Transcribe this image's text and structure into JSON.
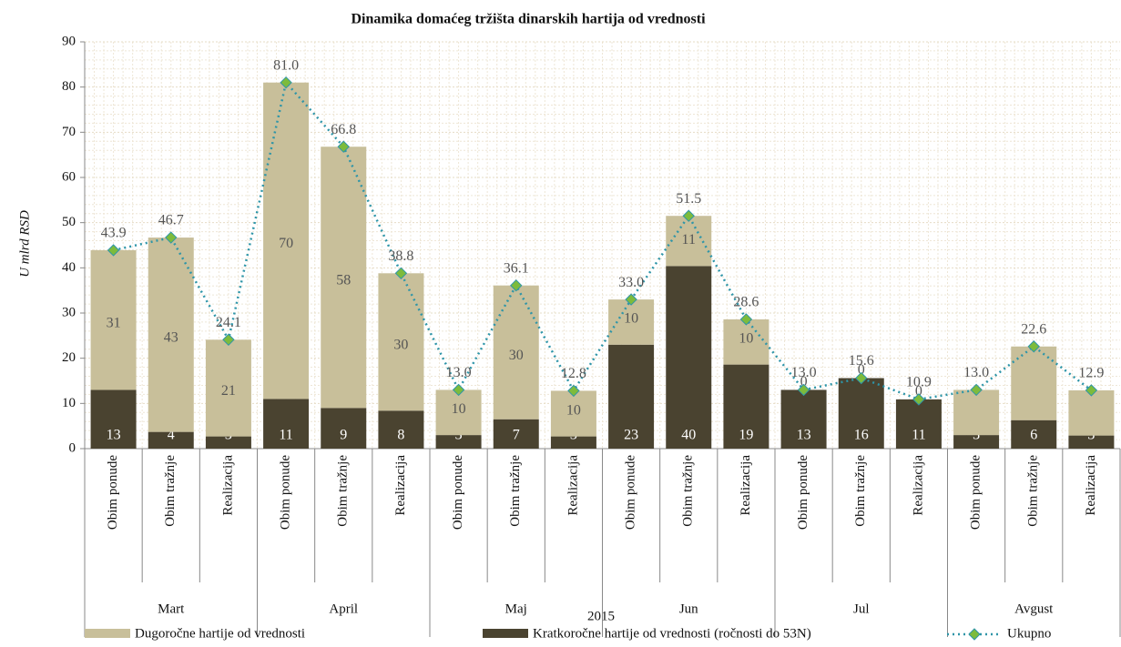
{
  "chart_data": {
    "type": "stacked-bar-line",
    "title": "Dinamika domaćeg tržišta dinarskih hartija od vrednosti",
    "y_label": "U mlrd RSD",
    "x_label": "2015",
    "groups": [
      "Mart",
      "April",
      "Maj",
      "Jun",
      "Jul",
      "Avgust"
    ],
    "categories": [
      "Obim ponude",
      "Obim tražnje",
      "Realizacija",
      "Obim ponude",
      "Obim tražnje",
      "Realizacija",
      "Obim ponude",
      "Obim tražnje",
      "Realizacija",
      "Obim ponude",
      "Obim tražnje",
      "Realizacija",
      "Obim ponude",
      "Obim tražnje",
      "Realizacija",
      "Obim ponude",
      "Obim tražnje",
      "Realizacija"
    ],
    "series": [
      {
        "name": "Kratkoročne hartije od vrednosti (ročnosti do 53N)",
        "color": "#4a4330",
        "kind": "bar",
        "values": [
          13,
          3.7,
          2.7,
          11,
          9,
          8.4,
          3,
          6.5,
          2.7,
          23,
          40.4,
          18.6,
          13,
          15.6,
          10.9,
          3,
          6.3,
          2.9
        ],
        "value_labels": [
          "13",
          "4",
          "3",
          "11",
          "9",
          "8",
          "3",
          "7",
          "3",
          "23",
          "40",
          "19",
          "13",
          "16",
          "11",
          "3",
          "6",
          "3"
        ]
      },
      {
        "name": "Dugoročne hartije od vrednosti",
        "color": "#c8bf9a",
        "kind": "bar",
        "values": [
          30.9,
          43,
          21.4,
          70,
          57.8,
          30.4,
          10,
          29.6,
          10.1,
          10,
          11.1,
          10,
          0,
          0,
          0,
          10,
          16.3,
          10
        ],
        "value_labels": [
          "31",
          "43",
          "21",
          "70",
          "58",
          "30",
          "10",
          "30",
          "10",
          "10",
          "11",
          "10",
          "0",
          "0",
          "0",
          null,
          null,
          null
        ]
      },
      {
        "name": "Ukupno",
        "color": "#2e95a8",
        "marker_color": "#7dbb3c",
        "kind": "line",
        "values": [
          43.9,
          46.7,
          24.1,
          81,
          66.8,
          38.8,
          13,
          36.1,
          12.8,
          33,
          51.5,
          28.6,
          13,
          15.6,
          10.9,
          13,
          22.6,
          12.9
        ],
        "value_labels": [
          "43.9",
          "46.7",
          "24.1",
          "81.0",
          "66.8",
          "38.8",
          "13.0",
          "36.1",
          "12.8",
          "33.0",
          "51.5",
          "28.6",
          "13.0",
          "15.6",
          "10.9",
          "13.0",
          "22.6",
          "12.9"
        ]
      }
    ],
    "ylim": [
      0,
      90
    ],
    "yticks": [
      0,
      10,
      20,
      30,
      40,
      50,
      60,
      70,
      80,
      90
    ],
    "grid": true
  }
}
